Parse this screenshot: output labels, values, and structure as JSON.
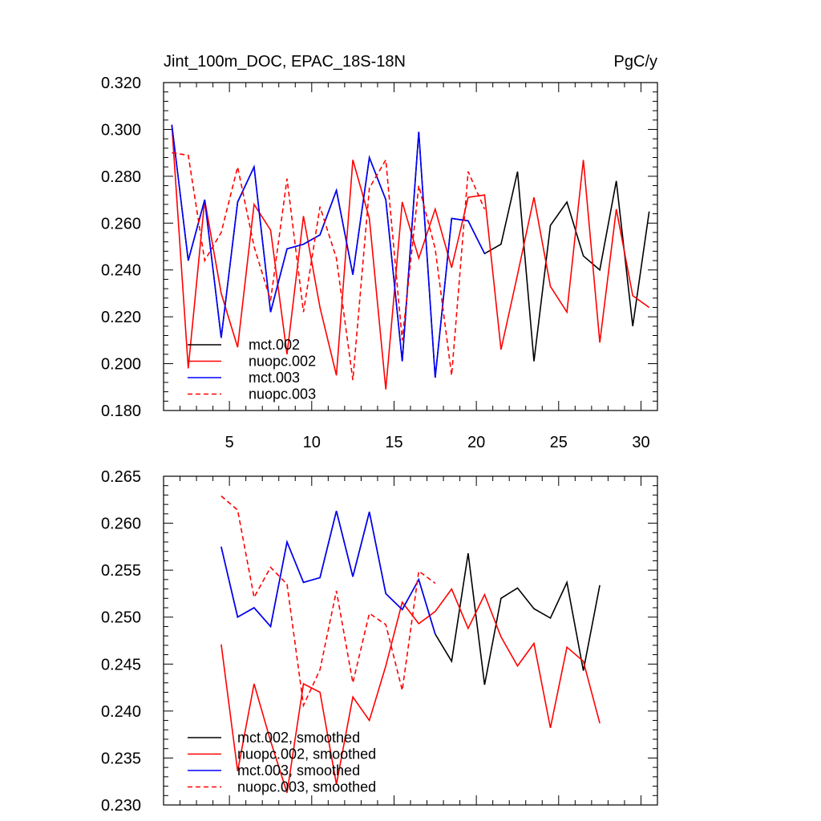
{
  "chart_data": [
    {
      "type": "line",
      "title": "Jint_100m_DOC, EPAC_18S-18N",
      "units_label": "PgC/y",
      "xlim": [
        1,
        31
      ],
      "ylim": [
        0.18,
        0.32
      ],
      "xticks": [
        5,
        10,
        15,
        20,
        25,
        30
      ],
      "xtick_labels": [
        "5",
        "10",
        "15",
        "20",
        "25",
        "30"
      ],
      "yticks": [
        0.18,
        0.2,
        0.22,
        0.24,
        0.26,
        0.28,
        0.3,
        0.32
      ],
      "ytick_labels": [
        "0.180",
        "0.200",
        "0.220",
        "0.240",
        "0.260",
        "0.280",
        "0.300",
        "0.320"
      ],
      "series": [
        {
          "name": "mct.002",
          "color": "#000000",
          "dash": "solid",
          "x": [
            1.5,
            2.5,
            3.5,
            4.5,
            5.5,
            6.5,
            7.5,
            8.5,
            9.5,
            10.5,
            11.5,
            12.5,
            13.5,
            14.5,
            15.5,
            16.5,
            17.5,
            18.5,
            19.5,
            20.5,
            21.5,
            22.5,
            23.5,
            24.5,
            25.5,
            26.5,
            27.5,
            28.5,
            29.5,
            30.5
          ],
          "values": [
            0.302,
            0.244,
            0.27,
            0.211,
            0.269,
            0.284,
            0.222,
            0.249,
            0.251,
            0.255,
            0.274,
            0.238,
            0.288,
            0.27,
            0.201,
            0.299,
            0.194,
            0.262,
            0.261,
            0.247,
            0.251,
            0.282,
            0.201,
            0.259,
            0.269,
            0.246,
            0.24,
            0.278,
            0.216,
            0.265
          ]
        },
        {
          "name": "nuopc.002",
          "color": "#ff0000",
          "dash": "solid",
          "x": [
            1.5,
            2.5,
            3.5,
            4.5,
            5.5,
            6.5,
            7.5,
            8.5,
            9.5,
            10.5,
            11.5,
            12.5,
            13.5,
            14.5,
            15.5,
            16.5,
            17.5,
            18.5,
            19.5,
            20.5,
            21.5,
            22.5,
            23.5,
            24.5,
            25.5,
            26.5,
            27.5,
            28.5,
            29.5,
            30.5
          ],
          "values": [
            0.302,
            0.198,
            0.27,
            0.23,
            0.207,
            0.268,
            0.257,
            0.204,
            0.263,
            0.224,
            0.195,
            0.287,
            0.262,
            0.189,
            0.269,
            0.245,
            0.266,
            0.241,
            0.271,
            0.272,
            0.206,
            0.238,
            0.271,
            0.233,
            0.222,
            0.287,
            0.209,
            0.266,
            0.229,
            0.224
          ]
        },
        {
          "name": "mct.003",
          "color": "#0000ff",
          "dash": "solid",
          "x": [
            1.5,
            2.5,
            3.5,
            4.5,
            5.5,
            6.5,
            7.5,
            8.5,
            9.5,
            10.5,
            11.5,
            12.5,
            13.5,
            14.5,
            15.5,
            16.5,
            17.5,
            18.5,
            19.5,
            20.5
          ],
          "values": [
            0.302,
            0.244,
            0.27,
            0.211,
            0.269,
            0.284,
            0.222,
            0.249,
            0.251,
            0.255,
            0.274,
            0.238,
            0.288,
            0.27,
            0.201,
            0.299,
            0.194,
            0.262,
            0.261,
            0.247
          ]
        },
        {
          "name": "nuopc.003",
          "color": "#ff0000",
          "dash": "dashed",
          "x": [
            1.5,
            2.5,
            3.5,
            4.5,
            5.5,
            6.5,
            7.5,
            8.5,
            9.5,
            10.5,
            11.5,
            12.5,
            13.5,
            14.5,
            15.5,
            16.5,
            17.5,
            18.5,
            19.5,
            20.5
          ],
          "values": [
            0.29,
            0.289,
            0.244,
            0.256,
            0.284,
            0.25,
            0.227,
            0.279,
            0.222,
            0.267,
            0.245,
            0.193,
            0.275,
            0.287,
            0.21,
            0.276,
            0.249,
            0.195,
            0.282,
            0.266
          ]
        }
      ],
      "legend": {
        "position": "lower-left",
        "entries": [
          "mct.002",
          "nuopc.002",
          "mct.003",
          "nuopc.003"
        ]
      }
    },
    {
      "type": "line",
      "title": "",
      "xlim": [
        1,
        31
      ],
      "ylim": [
        0.23,
        0.265
      ],
      "xticks": [
        5,
        10,
        15,
        20,
        25,
        30
      ],
      "xtick_labels": [],
      "yticks": [
        0.23,
        0.235,
        0.24,
        0.245,
        0.25,
        0.255,
        0.26,
        0.265
      ],
      "ytick_labels": [
        "0.230",
        "0.235",
        "0.240",
        "0.245",
        "0.250",
        "0.255",
        "0.260",
        "0.265"
      ],
      "series": [
        {
          "name": "mct.002, smoothed",
          "color": "#000000",
          "dash": "solid",
          "x": [
            4.5,
            5.5,
            6.5,
            7.5,
            8.5,
            9.5,
            10.5,
            11.5,
            12.5,
            13.5,
            14.5,
            15.5,
            16.5,
            17.5,
            18.5,
            19.5,
            20.5,
            21.5,
            22.5,
            23.5,
            24.5,
            25.5,
            26.5,
            27.5
          ],
          "values": [
            0.2575,
            0.25,
            0.251,
            0.249,
            0.258,
            0.2537,
            0.2542,
            0.2613,
            0.2543,
            0.2612,
            0.2525,
            0.2508,
            0.254,
            0.2482,
            0.2453,
            0.2568,
            0.2428,
            0.252,
            0.2531,
            0.2509,
            0.2499,
            0.2537,
            0.2443,
            0.2534
          ]
        },
        {
          "name": "nuopc.002, smoothed",
          "color": "#ff0000",
          "dash": "solid",
          "x": [
            4.5,
            5.5,
            6.5,
            7.5,
            8.5,
            9.5,
            10.5,
            11.5,
            12.5,
            13.5,
            14.5,
            15.5,
            16.5,
            17.5,
            18.5,
            19.5,
            20.5,
            21.5,
            22.5,
            23.5,
            24.5,
            25.5,
            26.5,
            27.5
          ],
          "values": [
            0.2471,
            0.2336,
            0.2429,
            0.2368,
            0.2313,
            0.2429,
            0.242,
            0.2322,
            0.2415,
            0.239,
            0.2448,
            0.2516,
            0.2493,
            0.2506,
            0.253,
            0.2488,
            0.2524,
            0.2479,
            0.2448,
            0.2472,
            0.2382,
            0.2468,
            0.2453,
            0.2387
          ]
        },
        {
          "name": "mct.003, smoothed",
          "color": "#0000ff",
          "dash": "solid",
          "x": [
            4.5,
            5.5,
            6.5,
            7.5,
            8.5,
            9.5,
            10.5,
            11.5,
            12.5,
            13.5,
            14.5,
            15.5,
            16.5,
            17.5
          ],
          "values": [
            0.2575,
            0.25,
            0.251,
            0.249,
            0.258,
            0.2537,
            0.2542,
            0.2613,
            0.2543,
            0.2612,
            0.2525,
            0.2508,
            0.254,
            0.2482
          ]
        },
        {
          "name": "nuopc.003, smoothed",
          "color": "#ff0000",
          "dash": "dashed",
          "x": [
            4.5,
            5.5,
            6.5,
            7.5,
            8.5,
            9.5,
            10.5,
            11.5,
            12.5,
            13.5,
            14.5,
            15.5,
            16.5,
            17.5
          ],
          "values": [
            0.2629,
            0.2614,
            0.2521,
            0.2553,
            0.2535,
            0.2406,
            0.2444,
            0.2528,
            0.243,
            0.2504,
            0.2492,
            0.2422,
            0.2549,
            0.2536
          ]
        }
      ],
      "legend": {
        "position": "lower-left",
        "entries": [
          "mct.002, smoothed",
          "nuopc.002, smoothed",
          "mct.003, smoothed",
          "nuopc.003, smoothed"
        ]
      }
    }
  ]
}
